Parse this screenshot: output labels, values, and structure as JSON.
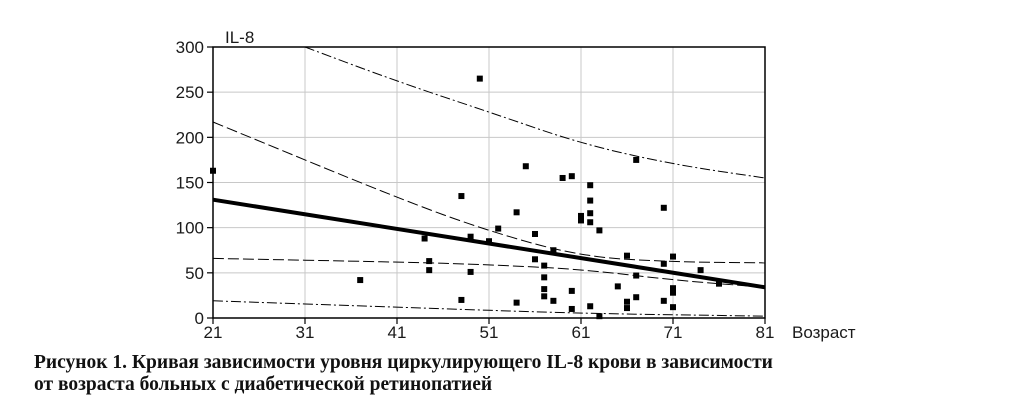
{
  "chart_data": {
    "type": "scatter",
    "ylabel": "IL-8",
    "xlabel": "Возраст",
    "xlim": [
      21,
      81
    ],
    "ylim": [
      0,
      300
    ],
    "xticks": [
      "21",
      "31",
      "41",
      "51",
      "61",
      "71",
      "81"
    ],
    "yticks": [
      "0",
      "50",
      "100",
      "150",
      "200",
      "250",
      "300"
    ],
    "grid": true,
    "points": [
      [
        21,
        163
      ],
      [
        37,
        42
      ],
      [
        44,
        88
      ],
      [
        44.5,
        63
      ],
      [
        44.5,
        53
      ],
      [
        48,
        135
      ],
      [
        48,
        20
      ],
      [
        49,
        90
      ],
      [
        49,
        51
      ],
      [
        50,
        265
      ],
      [
        51,
        85
      ],
      [
        52,
        99
      ],
      [
        54,
        117
      ],
      [
        54,
        17
      ],
      [
        55,
        168
      ],
      [
        56,
        93
      ],
      [
        56,
        65
      ],
      [
        57,
        58
      ],
      [
        57,
        45
      ],
      [
        57,
        32
      ],
      [
        57,
        24
      ],
      [
        58,
        75
      ],
      [
        58,
        19
      ],
      [
        59,
        155
      ],
      [
        60,
        157
      ],
      [
        60,
        30
      ],
      [
        60,
        10
      ],
      [
        61,
        113
      ],
      [
        61,
        108
      ],
      [
        62,
        147
      ],
      [
        62,
        130
      ],
      [
        62,
        116
      ],
      [
        62,
        106
      ],
      [
        62,
        13
      ],
      [
        63,
        97
      ],
      [
        63,
        2
      ],
      [
        65,
        35
      ],
      [
        66,
        69
      ],
      [
        66,
        18
      ],
      [
        66,
        11
      ],
      [
        67,
        175
      ],
      [
        67,
        47
      ],
      [
        67,
        23
      ],
      [
        70,
        122
      ],
      [
        70,
        60
      ],
      [
        70,
        19
      ],
      [
        71,
        68
      ],
      [
        71,
        33
      ],
      [
        71,
        28
      ],
      [
        71,
        12
      ],
      [
        74,
        53
      ],
      [
        76,
        38
      ]
    ],
    "series": [
      {
        "style": "regression",
        "x": [
          21,
          81
        ],
        "y": [
          131,
          34
        ]
      },
      {
        "style": "confidence-upper",
        "x": [
          21,
          41,
          51,
          61,
          71,
          81
        ],
        "y": [
          217,
          133,
          96,
          68,
          62,
          61
        ]
      },
      {
        "style": "confidence-lower",
        "x": [
          21,
          41,
          51,
          61,
          71,
          81
        ],
        "y": [
          66,
          62,
          59,
          54,
          42,
          34
        ]
      },
      {
        "style": "prediction-upper",
        "x": [
          31,
          41,
          51,
          61,
          71,
          81
        ],
        "y": [
          300,
          262,
          228,
          193,
          170,
          155
        ]
      },
      {
        "style": "prediction-lower",
        "x": [
          21,
          41,
          61,
          81
        ],
        "y": [
          19,
          12,
          5,
          2
        ]
      }
    ]
  },
  "caption": {
    "line1": "Рисунок 1. Кривая зависимости уровня циркулирующего IL-8 крови в зависимости",
    "line2": "от возраста больных с диабетической ретинопатией"
  }
}
